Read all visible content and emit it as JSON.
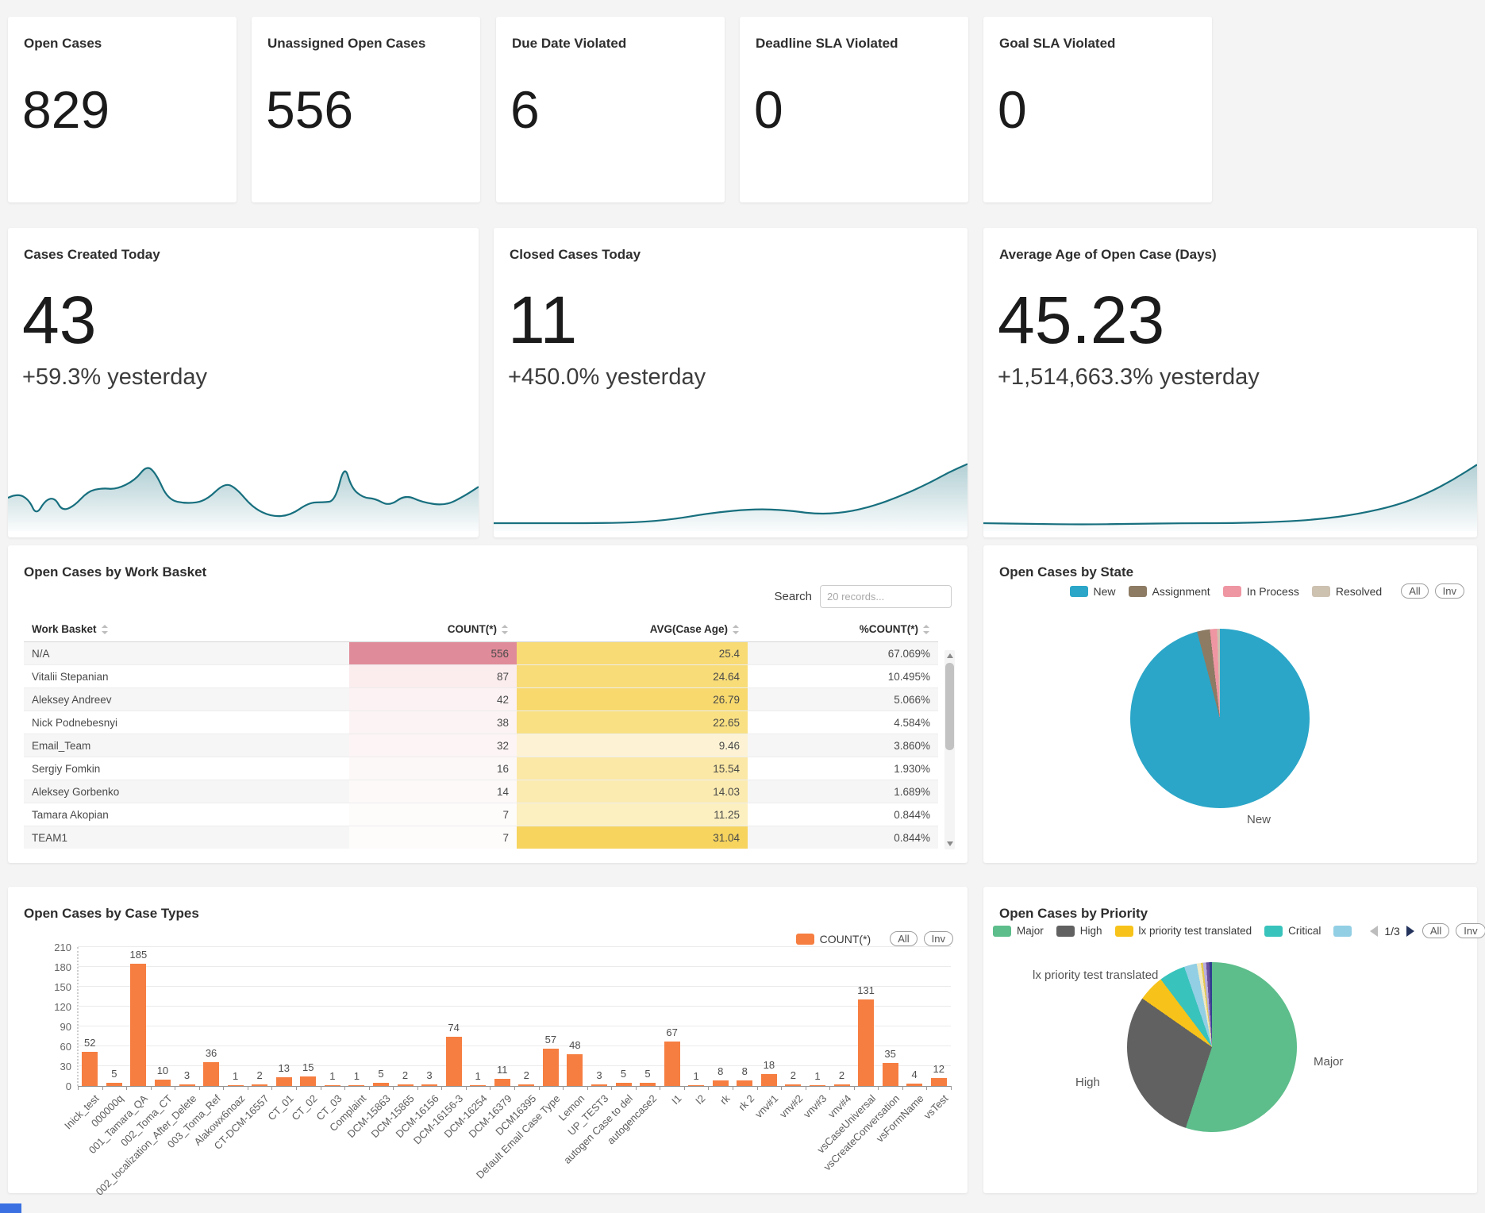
{
  "kpi_cards": [
    {
      "label": "Open Cases",
      "value": "829"
    },
    {
      "label": "Unassigned Open Cases",
      "value": "556"
    },
    {
      "label": "Due Date Violated",
      "value": "6"
    },
    {
      "label": "Deadline SLA Violated",
      "value": "0"
    },
    {
      "label": "Goal SLA Violated",
      "value": "0"
    }
  ],
  "trend_cards": [
    {
      "label": "Cases Created Today",
      "value": "43",
      "delta": "+59.3% yesterday",
      "chart_id": "cases_created_spark"
    },
    {
      "label": "Closed Cases Today",
      "value": "11",
      "delta": "+450.0% yesterday",
      "chart_id": "closed_cases_spark"
    },
    {
      "label": "Average Age of Open Case (Days)",
      "value": "45.23",
      "delta": "+1,514,663.3% yesterday",
      "chart_id": "avg_age_spark"
    }
  ],
  "work_basket": {
    "title": "Open Cases by Work Basket",
    "search_label": "Search",
    "search_placeholder": "20 records...",
    "columns": [
      "Work Basket",
      "COUNT(*)",
      "AVG(Case Age)",
      "%COUNT(*)"
    ],
    "rows": [
      {
        "name": "N/A",
        "count": "556",
        "avg": "25.4",
        "pct": "67.069%",
        "muted": true,
        "count_bg": "#e08b99",
        "avg_bg": "#f8db74"
      },
      {
        "name": "Vitalii Stepanian",
        "count": "87",
        "avg": "24.64",
        "pct": "10.495%",
        "muted": false,
        "count_bg": "#fbecee",
        "avg_bg": "#f8dc78"
      },
      {
        "name": "Aleksey Andreev",
        "count": "42",
        "avg": "26.79",
        "pct": "5.066%",
        "muted": false,
        "count_bg": "#fcf2f3",
        "avg_bg": "#f7d96e"
      },
      {
        "name": "Nick Podnebesnyi",
        "count": "38",
        "avg": "22.65",
        "pct": "4.584%",
        "muted": false,
        "count_bg": "#fcf3f4",
        "avg_bg": "#f9e082"
      },
      {
        "name": "Email_Team",
        "count": "32",
        "avg": "9.46",
        "pct": "3.860%",
        "muted": false,
        "count_bg": "#fdf4f5",
        "avg_bg": "#fdf3d4"
      },
      {
        "name": "Sergiy Fomkin",
        "count": "16",
        "avg": "15.54",
        "pct": "1.930%",
        "muted": false,
        "count_bg": "#fdf8f8",
        "avg_bg": "#fbe8a6"
      },
      {
        "name": "Aleksey Gorbenko",
        "count": "14",
        "avg": "14.03",
        "pct": "1.689%",
        "muted": false,
        "count_bg": "#fdf9f9",
        "avg_bg": "#fcebb0"
      },
      {
        "name": "Tamara Akopian",
        "count": "7",
        "avg": "11.25",
        "pct": "0.844%",
        "muted": false,
        "count_bg": "#fefbfb",
        "avg_bg": "#fcefc0"
      },
      {
        "name": "TEAM1",
        "count": "7",
        "avg": "31.04",
        "pct": "0.844%",
        "muted": false,
        "count_bg": "#fefbfb",
        "avg_bg": "#f6d45e"
      }
    ]
  },
  "state_card": {
    "title": "Open Cases by State",
    "all_label": "All",
    "inv_label": "Inv",
    "callout_label": "New"
  },
  "case_types_card": {
    "title": "Open Cases by Case Types",
    "legend_label": "COUNT(*)",
    "all_label": "All",
    "inv_label": "Inv"
  },
  "priority_card": {
    "title": "Open Cases by Priority",
    "pager": "1/3",
    "all_label": "All",
    "inv_label": "Inv",
    "label_top_left": "lx priority test translated",
    "label_left": "High",
    "label_right": "Major"
  },
  "chart_data": [
    {
      "id": "cases_created_spark",
      "type": "area",
      "title": "Cases Created Today",
      "line_color": "#176f7e",
      "points": [
        [
          0,
          0.45
        ],
        [
          0.02,
          0.52
        ],
        [
          0.045,
          0.42
        ],
        [
          0.06,
          0.18
        ],
        [
          0.08,
          0.42
        ],
        [
          0.1,
          0.45
        ],
        [
          0.115,
          0.25
        ],
        [
          0.14,
          0.32
        ],
        [
          0.17,
          0.55
        ],
        [
          0.2,
          0.6
        ],
        [
          0.23,
          0.58
        ],
        [
          0.27,
          0.72
        ],
        [
          0.295,
          0.95
        ],
        [
          0.315,
          0.82
        ],
        [
          0.34,
          0.42
        ],
        [
          0.38,
          0.36
        ],
        [
          0.42,
          0.4
        ],
        [
          0.46,
          0.68
        ],
        [
          0.485,
          0.6
        ],
        [
          0.52,
          0.3
        ],
        [
          0.56,
          0.16
        ],
        [
          0.6,
          0.18
        ],
        [
          0.64,
          0.38
        ],
        [
          0.67,
          0.38
        ],
        [
          0.695,
          0.4
        ],
        [
          0.715,
          0.97
        ],
        [
          0.73,
          0.6
        ],
        [
          0.755,
          0.45
        ],
        [
          0.78,
          0.44
        ],
        [
          0.81,
          0.32
        ],
        [
          0.845,
          0.5
        ],
        [
          0.88,
          0.38
        ],
        [
          0.93,
          0.33
        ],
        [
          0.97,
          0.48
        ],
        [
          1,
          0.62
        ]
      ]
    },
    {
      "id": "closed_cases_spark",
      "type": "area",
      "title": "Closed Cases Today",
      "line_color": "#176f7e",
      "points": [
        [
          0,
          0.06
        ],
        [
          0.1,
          0.06
        ],
        [
          0.2,
          0.06
        ],
        [
          0.3,
          0.07
        ],
        [
          0.38,
          0.12
        ],
        [
          0.46,
          0.22
        ],
        [
          0.55,
          0.28
        ],
        [
          0.62,
          0.26
        ],
        [
          0.68,
          0.2
        ],
        [
          0.74,
          0.22
        ],
        [
          0.8,
          0.32
        ],
        [
          0.86,
          0.48
        ],
        [
          0.92,
          0.68
        ],
        [
          0.96,
          0.84
        ],
        [
          1,
          0.97
        ]
      ]
    },
    {
      "id": "avg_age_spark",
      "type": "area",
      "title": "Average Age of Open Case (Days)",
      "line_color": "#176f7e",
      "points": [
        [
          0,
          0.06
        ],
        [
          0.1,
          0.05
        ],
        [
          0.2,
          0.04
        ],
        [
          0.3,
          0.05
        ],
        [
          0.4,
          0.06
        ],
        [
          0.5,
          0.06
        ],
        [
          0.6,
          0.08
        ],
        [
          0.68,
          0.12
        ],
        [
          0.76,
          0.2
        ],
        [
          0.84,
          0.34
        ],
        [
          0.9,
          0.52
        ],
        [
          0.95,
          0.72
        ],
        [
          1,
          0.96
        ]
      ]
    },
    {
      "id": "open_cases_by_state",
      "type": "pie",
      "title": "Open Cases by State",
      "legend_position": "top-right",
      "legend_count": 4,
      "slices": [
        {
          "label": "New",
          "pct": 95.9,
          "color": "#2ba6c8"
        },
        {
          "label": "Assignment",
          "pct": 2.3,
          "color": "#8d7b64"
        },
        {
          "label": "In Process",
          "pct": 1.3,
          "color": "#ef96a3"
        },
        {
          "label": "Resolved",
          "pct": 0.5,
          "color": "#cdc1b0"
        }
      ]
    },
    {
      "id": "open_cases_by_case_types",
      "type": "bar",
      "title": "Open Cases by Case Types",
      "series_name": "COUNT(*)",
      "bar_color": "#f67e41",
      "ylim": [
        0,
        210
      ],
      "yticks": [
        0,
        30,
        60,
        90,
        120,
        150,
        180,
        210
      ],
      "grid": true,
      "categories": [
        "Inick_test",
        "000000q",
        "001_Tamara_QA",
        "002_Toma_CT",
        "002_localization_After_Delete",
        "003_Toma_Ref",
        "Alakowx6noaz",
        "CT-DCM-16557",
        "CT_01",
        "CT_02",
        "CT_03",
        "Complaint",
        "DCM-15863",
        "DCM-15865",
        "DCM-16156",
        "DCM-16156-3",
        "DCM-16254",
        "DCM-16379",
        "DCM16395",
        "Default Email Case Type",
        "Lemon",
        "UP_TEST3",
        "autogen Case to del",
        "autogencase2",
        "I1",
        "I2",
        "rk",
        "rk 2",
        "vnv#1",
        "vnv#2",
        "vnv#3",
        "vnv#4",
        "vsCaseUniversal",
        "vsCreateConversation",
        "vsFormName",
        "vsTest"
      ],
      "values": [
        52,
        5,
        185,
        10,
        3,
        36,
        1,
        2,
        13,
        15,
        1,
        1,
        5,
        2,
        3,
        74,
        1,
        11,
        2,
        57,
        48,
        3,
        5,
        5,
        67,
        1,
        8,
        8,
        18,
        2,
        1,
        2,
        131,
        35,
        4,
        12
      ]
    },
    {
      "id": "open_cases_by_priority",
      "type": "pie",
      "title": "Open Cases by Priority",
      "legend_position": "top-left",
      "legend_count": 5,
      "slices": [
        {
          "label": "Major",
          "pct": 55,
          "color": "#5dbd8b"
        },
        {
          "label": "High",
          "pct": 29.7,
          "color": "#616161"
        },
        {
          "label": "lx priority test translated",
          "pct": 5,
          "color": "#f7c31a"
        },
        {
          "label": "Critical",
          "pct": 5,
          "color": "#38c3bc"
        },
        {
          "label": "",
          "pct": 2.4,
          "color": "#92cfe4"
        },
        {
          "label": "",
          "pct": 0.8,
          "color": "#efe9c6"
        },
        {
          "label": "",
          "pct": 0.4,
          "color": "#e5c94f"
        },
        {
          "label": "",
          "pct": 0.6,
          "color": "#b9aede"
        },
        {
          "label": "",
          "pct": 0.6,
          "color": "#6a4f9e"
        },
        {
          "label": "",
          "pct": 0.5,
          "color": "#2f3f8f"
        }
      ]
    }
  ]
}
